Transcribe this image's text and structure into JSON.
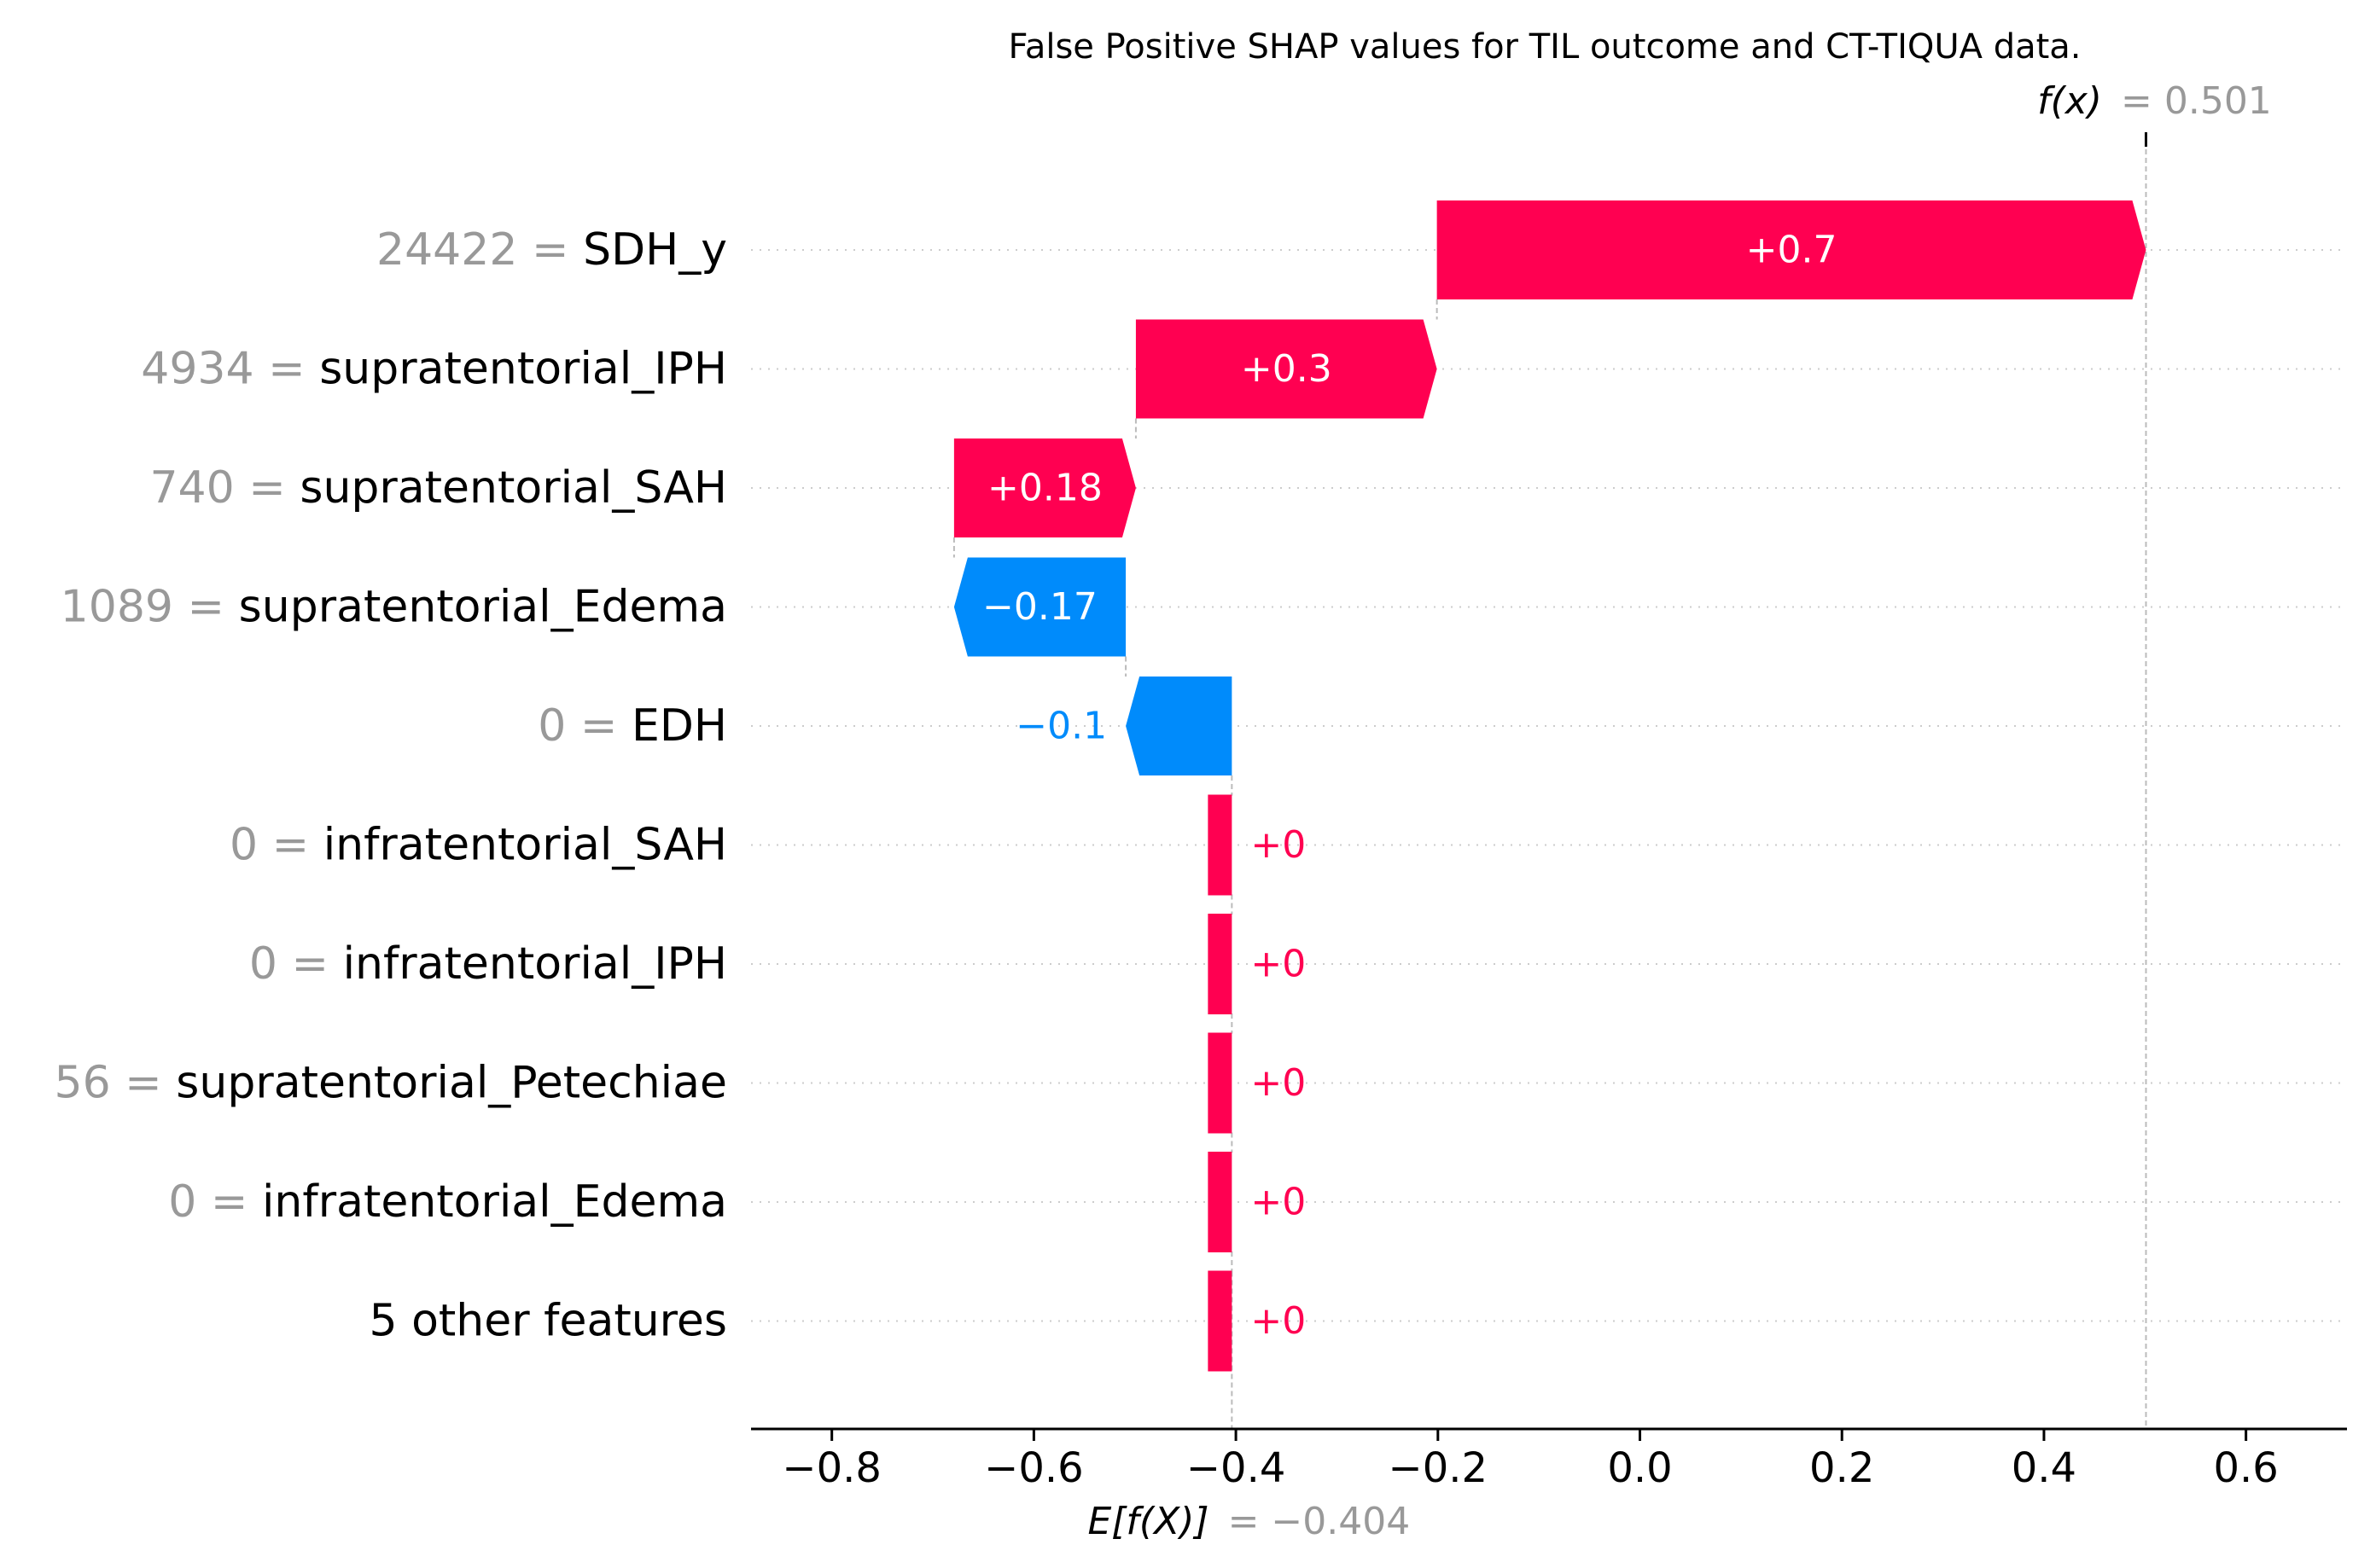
{
  "chart_data": {
    "type": "bar",
    "subtype": "waterfall",
    "title": "False Positive SHAP values for TIL outcome and CT-TIQUA data.",
    "base_value": -0.404,
    "output_value": 0.501,
    "base_label": "E[f(X)]",
    "base_value_text": "= −0.404",
    "output_label": "f(x)",
    "output_value_text": "= 0.501",
    "xlim": [
      -0.88,
      0.7
    ],
    "xticks": [
      -0.8,
      -0.6,
      -0.4,
      -0.2,
      0.0,
      0.2,
      0.4,
      0.6
    ],
    "xtick_labels": [
      "−0.8",
      "−0.6",
      "−0.4",
      "−0.2",
      "0.0",
      "0.2",
      "0.4",
      "0.6"
    ],
    "features": [
      {
        "value": "24422 =",
        "name": "SDH_y",
        "shap": 0.705,
        "label": "+0.7"
      },
      {
        "value": "4934 =",
        "name": "supratentorial_IPH",
        "shap": 0.298,
        "label": "+0.3"
      },
      {
        "value": "740 =",
        "name": "supratentorial_SAH",
        "shap": 0.18,
        "label": "+0.18"
      },
      {
        "value": "1089 =",
        "name": "supratentorial_Edema",
        "shap": -0.17,
        "label": "−0.17"
      },
      {
        "value": "0 =",
        "name": "EDH",
        "shap": -0.105,
        "label": "−0.1"
      },
      {
        "value": "0 =",
        "name": "infratentorial_SAH",
        "shap": 0.0,
        "label": "+0"
      },
      {
        "value": "0 =",
        "name": "infratentorial_IPH",
        "shap": 0.0,
        "label": "+0"
      },
      {
        "value": "56 =",
        "name": "supratentorial_Petechiae",
        "shap": 0.0,
        "label": "+0"
      },
      {
        "value": "0 =",
        "name": "infratentorial_Edema",
        "shap": 0.0,
        "label": "+0"
      },
      {
        "value": "",
        "name": "5 other features",
        "shap": 0.0,
        "label": "+0"
      }
    ],
    "colors": {
      "positive": "#ff0051",
      "negative": "#008bfb",
      "feature_value": "#999999",
      "feature_name": "#000000",
      "gridline": "#cccccc",
      "connector": "#bbbbbb"
    },
    "grid": true
  }
}
